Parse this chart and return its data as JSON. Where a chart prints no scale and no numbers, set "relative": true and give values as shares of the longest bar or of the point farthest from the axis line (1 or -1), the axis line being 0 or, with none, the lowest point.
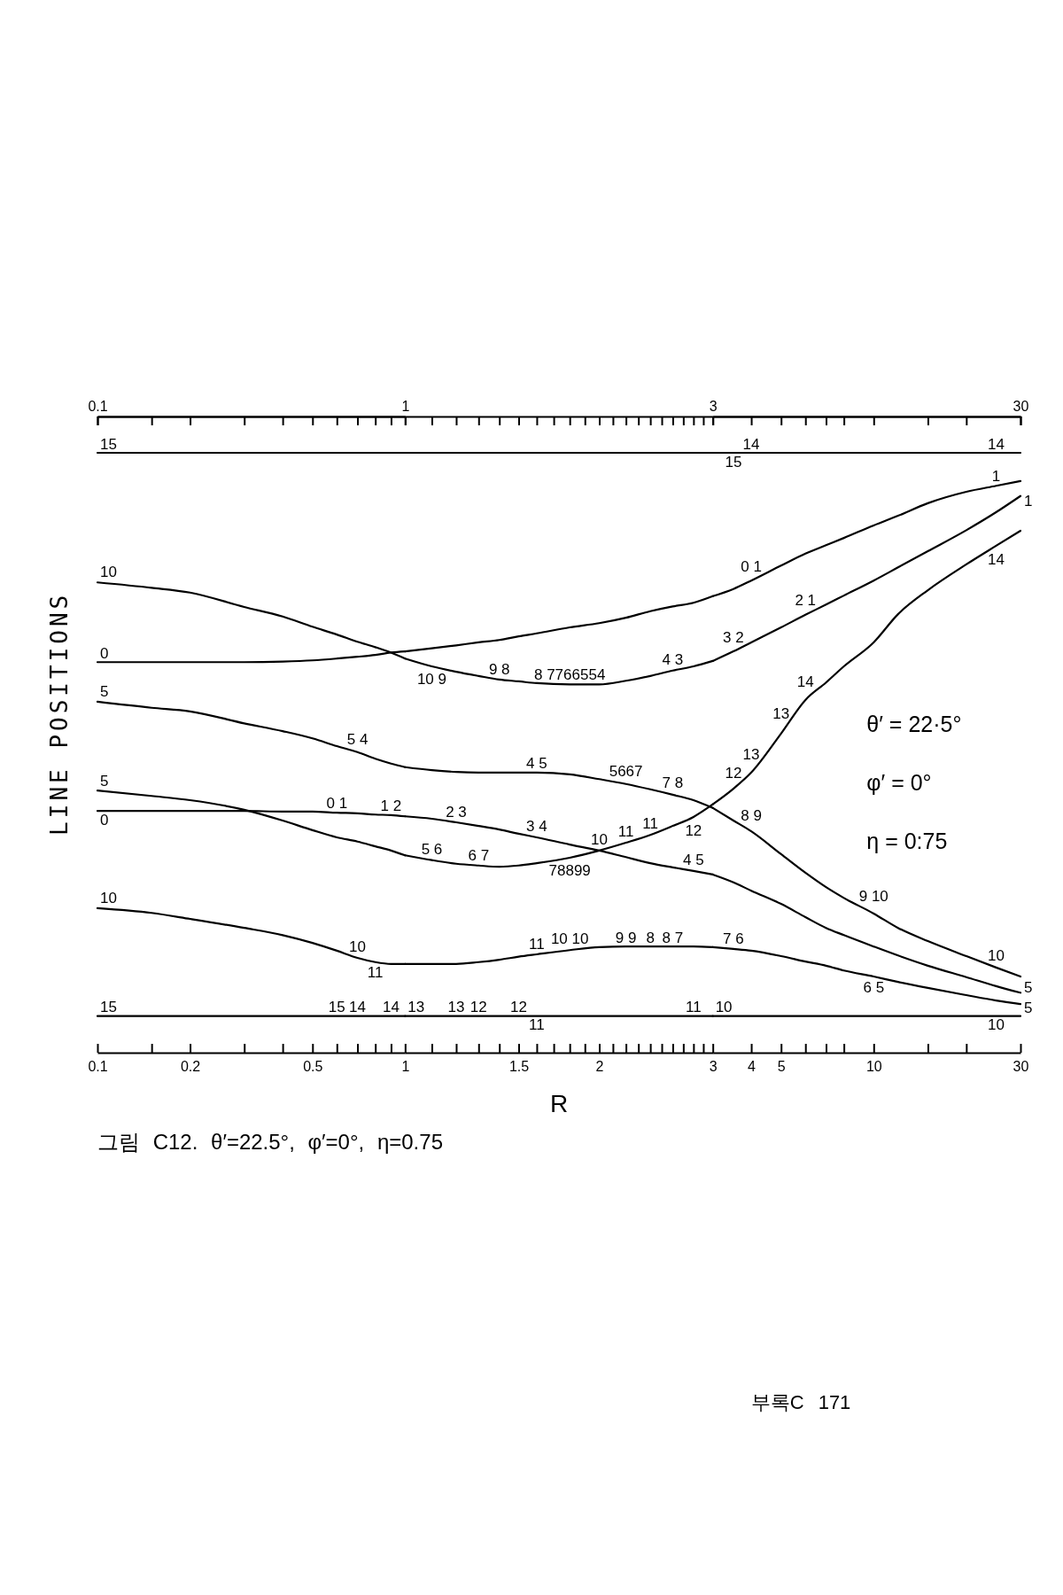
{
  "chart_data": [
    {
      "type": "line",
      "title": "그림 C12. θ′=22.5°, φ′=0°, η=0.75",
      "ylabel": "LINE POSITIONS",
      "relative": true,
      "log": "x",
      "xlim": [
        0.1,
        1
      ],
      "xticks": [
        0.1,
        {
          "value": 0.15,
          "label": null
        },
        0.2,
        {
          "value": 0.3,
          "label": null
        },
        {
          "value": 0.4,
          "label": null
        },
        0.5,
        {
          "value": 0.6,
          "label": null
        },
        {
          "value": 0.7,
          "label": null
        },
        {
          "value": 0.8,
          "label": null
        },
        {
          "value": 0.9,
          "label": null
        },
        1
      ],
      "x2lim": [
        0.1,
        1
      ],
      "x2ticks": [
        0.1,
        1
      ],
      "x": [
        0.1,
        0.15,
        0.2,
        0.3,
        0.4,
        0.5,
        0.6,
        0.7,
        0.8,
        0.9,
        1
      ],
      "series": [
        {
          "color": "#000000",
          "values": [
            1,
            1,
            1,
            1,
            1,
            1,
            1,
            1,
            1,
            1,
            1
          ]
        },
        {
          "color": "#000000",
          "values": [
            0.651,
            0.651,
            0.651,
            0.651,
            0.652,
            0.654,
            0.657,
            0.66,
            0.663,
            0.667,
            0.669
          ]
        },
        {
          "color": "#000000",
          "values": [
            0.784,
            0.775,
            0.767,
            0.743,
            0.727,
            0.71,
            0.697,
            0.685,
            0.676,
            0.667,
            0.657
          ]
        },
        {
          "color": "#000000",
          "values": [
            0.585,
            0.575,
            0.569,
            0.549,
            0.536,
            0.524,
            0.511,
            0.501,
            0.49,
            0.482,
            0.476
          ]
        },
        {
          "color": "#000000",
          "values": [
            0.437,
            0.428,
            0.421,
            0.405,
            0.387,
            0.371,
            0.359,
            0.352,
            0.344,
            0.337,
            0.329
          ]
        },
        {
          "color": "#000000",
          "values": [
            0.403,
            0.403,
            0.403,
            0.403,
            0.402,
            0.402,
            0.4,
            0.399,
            0.397,
            0.396,
            0.394
          ]
        },
        {
          "color": "#000000",
          "values": [
            0.241,
            0.233,
            0.223,
            0.208,
            0.196,
            0.183,
            0.17,
            0.158,
            0.151,
            0.148,
            0.148
          ]
        },
        {
          "color": "#000000",
          "values": [
            0.061,
            0.061,
            0.061,
            0.061,
            0.061,
            0.061,
            0.061,
            0.061,
            0.061,
            0.061,
            0.061
          ]
        }
      ],
      "annotations": [
        {
          "text": "15",
          "x": 0.1,
          "y": 1
        },
        {
          "text": "10",
          "x": 0.1,
          "y": 0.784
        },
        {
          "text": "0",
          "x": 0.1,
          "y": 0.651
        },
        {
          "text": "5",
          "x": 0.1,
          "y": 0.585
        },
        {
          "text": "5",
          "x": 0.1,
          "y": 0.437
        },
        {
          "text": "0",
          "x": 0.1,
          "y": 0.403
        },
        {
          "text": "10",
          "x": 0.1,
          "y": 0.241
        },
        {
          "text": "15",
          "x": 0.1,
          "y": 0.061
        },
        {
          "text": "5 4",
          "x": 0.7,
          "y": 0.501
        },
        {
          "text": "0 1",
          "x": 0.6,
          "y": 0.4
        },
        {
          "text": "1 2",
          "x": 0.9,
          "y": 0.396
        },
        {
          "text": "10",
          "x": 0.7,
          "y": 0.158
        },
        {
          "text": "11",
          "x": 0.8,
          "y": 0.151
        },
        {
          "text": "15",
          "x": 0.6,
          "y": 0.061
        },
        {
          "text": "14",
          "x": 0.7,
          "y": 0.061
        },
        {
          "text": "14",
          "x": 0.9,
          "y": 0.061
        },
        "부록C 171"
      ]
    },
    {
      "type": "line",
      "xlabel": "R",
      "relative": true,
      "log": "x",
      "xlim": [
        1,
        3
      ],
      "xticks": [
        {
          "value": 1.1,
          "label": null
        },
        {
          "value": 1.2,
          "label": null
        },
        {
          "value": 1.3,
          "label": null
        },
        {
          "value": 1.4,
          "label": null
        },
        1.5,
        {
          "value": 1.6,
          "label": null
        },
        {
          "value": 1.7,
          "label": null
        },
        {
          "value": 1.8,
          "label": null
        },
        {
          "value": 1.9,
          "label": null
        },
        2,
        {
          "value": 2.1,
          "label": null
        },
        {
          "value": 2.2,
          "label": null
        },
        {
          "value": 2.3,
          "label": null
        },
        {
          "value": 2.4,
          "label": null
        },
        {
          "value": 2.5,
          "label": null
        },
        {
          "value": 2.6,
          "label": null
        },
        {
          "value": 2.7,
          "label": null
        },
        {
          "value": 2.8,
          "label": null
        },
        {
          "value": 2.9,
          "label": null
        },
        3
      ],
      "x": [
        1,
        1.1,
        1.2,
        1.3,
        1.4,
        1.5,
        1.6,
        1.8,
        2,
        2.2,
        2.4,
        2.6,
        2.8,
        3
      ],
      "series": [
        {
          "color": "#000000",
          "values": [
            1,
            1,
            1,
            1,
            1,
            1,
            1,
            1,
            1,
            1,
            1,
            1,
            1,
            1
          ]
        },
        {
          "color": "#000000",
          "values": [
            0.669,
            0.674,
            0.679,
            0.684,
            0.688,
            0.694,
            0.699,
            0.709,
            0.716,
            0.725,
            0.736,
            0.744,
            0.75,
            0.761
          ]
        },
        {
          "color": "#000000",
          "values": [
            0.657,
            0.644,
            0.635,
            0.628,
            0.622,
            0.619,
            0.616,
            0.614,
            0.614,
            0.62,
            0.628,
            0.637,
            0.644,
            0.653
          ]
        },
        {
          "color": "#000000",
          "values": [
            0.476,
            0.471,
            0.468,
            0.467,
            0.467,
            0.467,
            0.467,
            0.464,
            0.456,
            0.448,
            0.439,
            0.43,
            0.421,
            0.408
          ]
        },
        {
          "color": "#000000",
          "values": [
            0.329,
            0.321,
            0.315,
            0.312,
            0.31,
            0.312,
            0.316,
            0.325,
            0.337,
            0.35,
            0.363,
            0.378,
            0.393,
            0.414
          ]
        },
        {
          "color": "#000000",
          "values": [
            0.394,
            0.39,
            0.384,
            0.378,
            0.372,
            0.365,
            0.359,
            0.347,
            0.337,
            0.326,
            0.316,
            0.309,
            0.303,
            0.297
          ]
        },
        {
          "color": "#000000",
          "values": [
            0.148,
            0.148,
            0.148,
            0.151,
            0.155,
            0.16,
            0.164,
            0.171,
            0.176,
            0.177,
            0.177,
            0.177,
            0.177,
            0.176
          ]
        },
        {
          "color": "#000000",
          "values": [
            0.061,
            0.061,
            0.061,
            0.061,
            0.061,
            0.061,
            0.061,
            0.061,
            0.061,
            0.061,
            0.061,
            0.061,
            0.061,
            0.061
          ]
        }
      ],
      "annotations": [
        {
          "text": "10 9",
          "x": 1.1,
          "y": 0.644
        },
        {
          "text": "9 8",
          "x": 1.4,
          "y": 0.622
        },
        {
          "text": "8 7766554",
          "x": 1.8,
          "y": 0.614
        },
        {
          "text": "4 3",
          "x": 2.6,
          "y": 0.637
        },
        {
          "text": "4 5",
          "x": 1.6,
          "y": 0.467
        },
        {
          "text": "5667",
          "x": 2.2,
          "y": 0.448
        },
        {
          "text": "7 8",
          "x": 2.6,
          "y": 0.43
        },
        {
          "text": "2 3",
          "x": 1.2,
          "y": 0.384
        },
        {
          "text": "3 4",
          "x": 1.6,
          "y": 0.359
        },
        {
          "text": "10",
          "x": 2,
          "y": 0.337
        },
        {
          "text": "11",
          "x": 2.2,
          "y": 0.35
        },
        {
          "text": "11",
          "x": 2.4,
          "y": 0.363
        },
        {
          "text": "12",
          "x": 2.8,
          "y": 0.393
        },
        {
          "text": "5 6",
          "x": 1.1,
          "y": 0.321
        },
        {
          "text": "6 7",
          "x": 1.3,
          "y": 0.312
        },
        {
          "text": "78899",
          "x": 1.8,
          "y": 0.325
        },
        {
          "text": "4 5",
          "x": 2.8,
          "y": 0.303
        },
        {
          "text": "10 10",
          "x": 1.8,
          "y": 0.171
        },
        {
          "text": "11",
          "x": 1.6,
          "y": 0.164
        },
        {
          "text": "9 9",
          "x": 2.2,
          "y": 0.177
        },
        {
          "text": "8",
          "x": 2.4,
          "y": 0.177
        },
        {
          "text": "8 7",
          "x": 2.6,
          "y": 0.177
        },
        {
          "text": "13",
          "x": 1,
          "y": 0.061
        },
        {
          "text": "13",
          "x": 1.2,
          "y": 0.061
        },
        {
          "text": "12",
          "x": 1.3,
          "y": 0.061
        },
        {
          "text": "12",
          "x": 1.5,
          "y": 0.061
        },
        {
          "text": "11",
          "x": 1.6,
          "y": 0.061
        },
        {
          "text": "11",
          "x": 2.8,
          "y": 0.061
        }
      ]
    },
    {
      "type": "line",
      "relative": true,
      "log": "x",
      "xlim": [
        3,
        30
      ],
      "xticks": [
        4,
        5,
        {
          "value": 6,
          "label": null
        },
        {
          "value": 7,
          "label": null
        },
        {
          "value": 8,
          "label": null
        },
        10,
        {
          "value": 15,
          "label": null
        },
        {
          "value": 20,
          "label": null
        },
        30
      ],
      "x2lim": [
        3,
        30
      ],
      "x2ticks": [
        3,
        30
      ],
      "x": [
        3,
        3.5,
        4,
        5,
        6,
        7,
        8,
        10,
        12,
        15,
        20,
        25,
        30
      ],
      "series": [
        {
          "color": "#000000",
          "values": [
            1,
            1,
            1,
            1,
            1,
            1,
            1,
            1,
            1,
            1,
            1,
            1,
            1
          ]
        },
        {
          "color": "#000000",
          "values": [
            0.761,
            0.773,
            0.787,
            0.812,
            0.832,
            0.846,
            0.858,
            0.879,
            0.895,
            0.916,
            0.935,
            0.945,
            0.953
          ]
        },
        {
          "color": "#000000",
          "values": [
            0.653,
            0.669,
            0.684,
            0.709,
            0.73,
            0.747,
            0.762,
            0.787,
            0.809,
            0.836,
            0.871,
            0.901,
            0.928
          ]
        },
        {
          "color": "#000000",
          "values": [
            0.408,
            0.387,
            0.369,
            0.331,
            0.3,
            0.276,
            0.258,
            0.232,
            0.208,
            0.186,
            0.161,
            0.142,
            0.127
          ]
        },
        {
          "color": "#000000",
          "values": [
            0.414,
            0.44,
            0.467,
            0.532,
            0.588,
            0.617,
            0.644,
            0.684,
            0.731,
            0.771,
            0.814,
            0.845,
            0.87
          ]
        },
        {
          "color": "#000000",
          "values": [
            0.297,
            0.284,
            0.27,
            0.248,
            0.226,
            0.208,
            0.196,
            0.177,
            0.162,
            0.145,
            0.126,
            0.111,
            0.1
          ]
        },
        {
          "color": "#000000",
          "values": [
            0.176,
            0.173,
            0.17,
            0.161,
            0.152,
            0.145,
            0.137,
            0.127,
            0.118,
            0.108,
            0.096,
            0.087,
            0.081
          ]
        },
        {
          "color": "#000000",
          "values": [
            0.061,
            0.061,
            0.061,
            0.061,
            0.061,
            0.061,
            0.061,
            0.061,
            0.061,
            0.061,
            0.061,
            0.061,
            0.061
          ]
        }
      ],
      "annotations": [
        {
          "text": "14",
          "x": 25,
          "y": 1
        },
        {
          "text": "14",
          "x": 4,
          "y": 1
        },
        {
          "text": "15",
          "x": 3.5,
          "y": 1
        },
        {
          "text": "1",
          "x": 25,
          "y": 0.945
        },
        {
          "text": "1",
          "x": 30,
          "y": 0.928
        },
        {
          "text": "14",
          "x": 25,
          "y": 0.845
        },
        {
          "text": "0 1",
          "x": 4,
          "y": 0.787
        },
        {
          "text": "2 1",
          "x": 6,
          "y": 0.73
        },
        {
          "text": "3 2",
          "x": 3.5,
          "y": 0.669
        },
        {
          "text": "14",
          "x": 6,
          "y": 0.588
        },
        {
          "text": "13",
          "x": 5,
          "y": 0.532
        },
        {
          "text": "13",
          "x": 4,
          "y": 0.467
        },
        {
          "text": "12",
          "x": 3.5,
          "y": 0.44
        },
        {
          "text": "8 9",
          "x": 4,
          "y": 0.369
        },
        {
          "text": "9 10",
          "x": 10,
          "y": 0.232
        },
        {
          "text": "10",
          "x": 25,
          "y": 0.142
        },
        {
          "text": "5",
          "x": 30,
          "y": 0.1
        },
        {
          "text": "5",
          "x": 30,
          "y": 0.081
        },
        {
          "text": "10",
          "x": 25,
          "y": 0.061
        },
        {
          "text": "6 5",
          "x": 10,
          "y": 0.127
        },
        {
          "text": "7 6",
          "x": 3.5,
          "y": 0.173
        },
        {
          "text": "10",
          "x": 3,
          "y": 0.061
        },
        "θ′ = 22·5°",
        "φ′ = 0°",
        "η = 0:75"
      ]
    }
  ]
}
